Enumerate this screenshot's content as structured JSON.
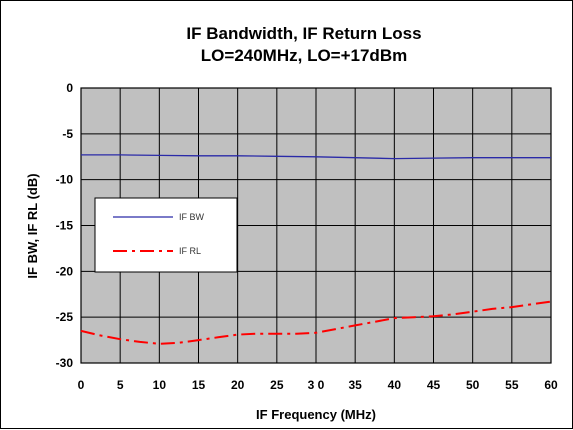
{
  "chart_data": {
    "type": "line",
    "title": [
      "IF Bandwidth, IF Return Loss",
      "LO=240MHz, LO=+17dBm"
    ],
    "xlabel": "IF Frequency (MHz)",
    "ylabel": "IF BW, IF RL (dB)",
    "xlim": [
      0,
      60
    ],
    "ylim": [
      -30,
      0
    ],
    "xticks": [
      0,
      5,
      10,
      15,
      20,
      25,
      30,
      35,
      40,
      45,
      50,
      55,
      60
    ],
    "xtick_labels": [
      "0",
      "5",
      "10",
      "15",
      "20",
      "25",
      "3 0",
      "35",
      "40",
      "45",
      "50",
      "55",
      "60"
    ],
    "yticks": [
      0,
      -5,
      -10,
      -15,
      -20,
      -25,
      -30
    ],
    "ytick_labels": [
      "0",
      "-5",
      "-10",
      "-15",
      "-20",
      "-25",
      "-30"
    ],
    "grid": true,
    "plot_background": "#c0c0c0",
    "legend_position": "left-middle",
    "series": [
      {
        "name": "IF BW",
        "color": "#2a2aa8",
        "dash": "solid",
        "x": [
          0,
          5,
          10,
          15,
          20,
          25,
          30,
          35,
          40,
          45,
          50,
          55,
          60
        ],
        "y": [
          -7.3,
          -7.3,
          -7.35,
          -7.4,
          -7.4,
          -7.45,
          -7.5,
          -7.6,
          -7.7,
          -7.65,
          -7.6,
          -7.6,
          -7.6
        ]
      },
      {
        "name": "IF RL",
        "color": "#ff0000",
        "dash": "dashdot",
        "x": [
          0,
          2.5,
          5,
          7.5,
          10,
          12.5,
          15,
          17.5,
          20,
          22.5,
          25,
          27.5,
          30,
          32.5,
          35,
          37.5,
          40,
          42.5,
          45,
          47.5,
          50,
          52.5,
          55,
          57.5,
          60
        ],
        "y": [
          -26.5,
          -27.0,
          -27.4,
          -27.7,
          -27.9,
          -27.8,
          -27.5,
          -27.2,
          -26.9,
          -26.8,
          -26.8,
          -26.8,
          -26.7,
          -26.3,
          -25.9,
          -25.5,
          -25.1,
          -25.0,
          -24.9,
          -24.7,
          -24.4,
          -24.1,
          -23.9,
          -23.6,
          -23.3
        ]
      }
    ]
  }
}
